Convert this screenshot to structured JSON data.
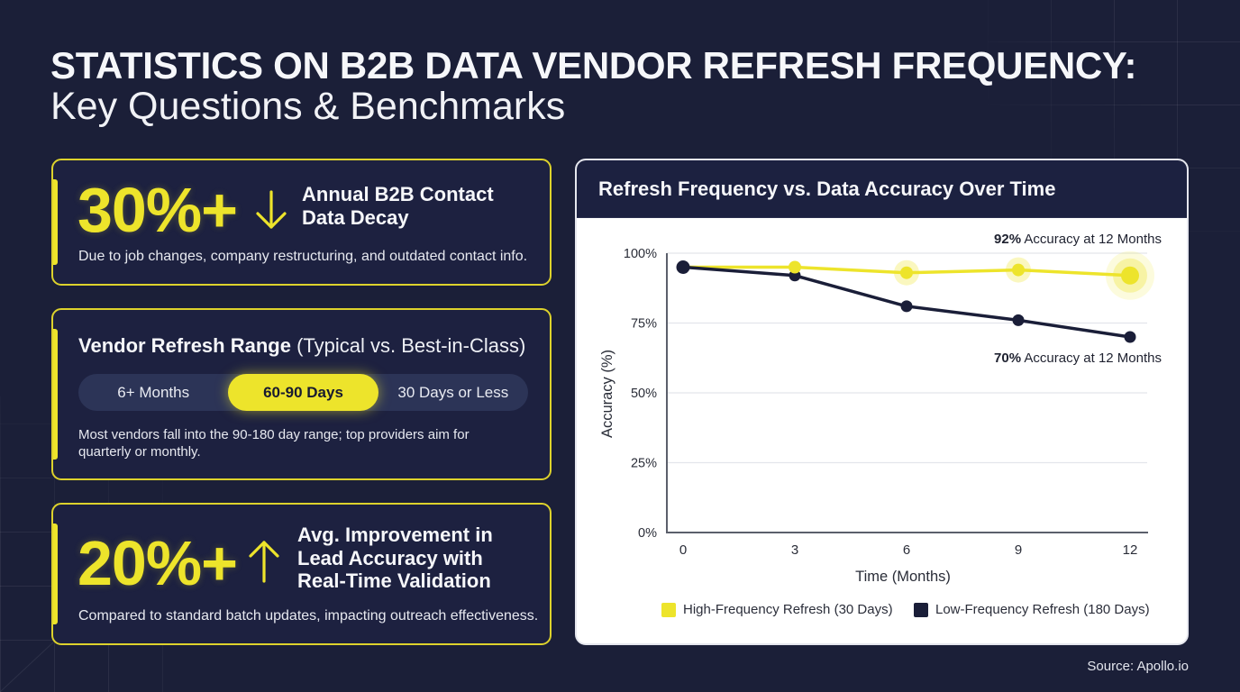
{
  "header": {
    "title": "STATISTICS ON B2B DATA VENDOR REFRESH FREQUENCY:",
    "subtitle": "Key Questions & Benchmarks"
  },
  "cards": [
    {
      "stat": "30%+",
      "arrow_icon": "arrow-down-icon",
      "title_lines": [
        "Annual B2B Contact",
        "Data Decay"
      ],
      "description": "Due to job changes, company restructuring, and outdated contact info."
    },
    {
      "title_bold": "Vendor Refresh Range",
      "title_light": " (Typical vs. Best-in-Class)",
      "segments": [
        {
          "label": "6+ Months",
          "active": false
        },
        {
          "label": "60-90 Days",
          "active": true
        },
        {
          "label": "30 Days or Less",
          "active": false
        }
      ],
      "description": "Most vendors fall into the 90-180 day range; top providers aim for quarterly or monthly."
    },
    {
      "stat": "20%+",
      "arrow_icon": "arrow-up-icon",
      "title_lines": [
        "Avg. Improvement in",
        "Lead Accuracy with",
        "Real-Time Validation"
      ],
      "description": "Compared to standard batch updates, impacting outreach effectiveness."
    }
  ],
  "chart_panel": {
    "title": "Refresh Frequency vs. Data Accuracy Over Time"
  },
  "chart_data": {
    "type": "line",
    "title": "Refresh Frequency vs. Data Accuracy Over Time",
    "xlabel": "Time (Months)",
    "ylabel": "Accuracy (%)",
    "x": [
      0,
      3,
      6,
      9,
      12
    ],
    "x_tick_labels": [
      "0",
      "3",
      "6",
      "9",
      "12"
    ],
    "y_ticks": [
      0,
      25,
      50,
      75,
      100
    ],
    "y_tick_labels": [
      "0%",
      "25%",
      "50%",
      "75%",
      "100%"
    ],
    "ylim": [
      0,
      100
    ],
    "grid": "horizontal",
    "legend_position": "bottom",
    "series": [
      {
        "name": "High-Frequency Refresh (30 Days)",
        "color": "#ede42b",
        "values": [
          95,
          95,
          93,
          94,
          92
        ]
      },
      {
        "name": "Low-Frequency Refresh (180 Days)",
        "color": "#1a1e38",
        "values": [
          95,
          92,
          81,
          76,
          70
        ]
      }
    ],
    "annotations": [
      {
        "series_index": 0,
        "value_label": "92%",
        "text": " Accuracy at 12 Months"
      },
      {
        "series_index": 1,
        "value_label": "70%",
        "text": " Accuracy at 12 Months"
      }
    ]
  },
  "footer": {
    "source": "Source: Apollo.io"
  },
  "colors": {
    "background": "#1b1f38",
    "accent_yellow": "#ede42b",
    "card_border": "#ddd22c",
    "pill_track": "#2c3457",
    "chart_header": "#1c2140"
  }
}
